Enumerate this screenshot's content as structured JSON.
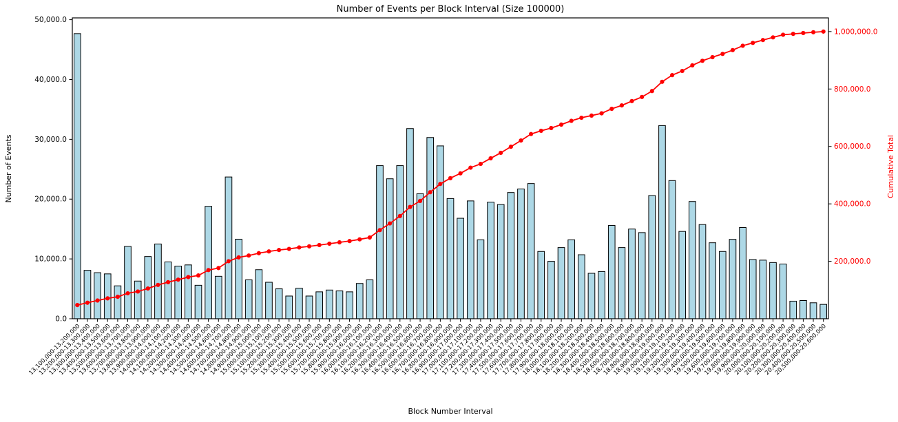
{
  "title": "Number of Events per Block Interval (Size 100000)",
  "chart_data": {
    "type": "bar",
    "title": "Number of Events per Block Interval (Size 100000)",
    "xlabel": "Block Number Interval",
    "ylabel": "Number of Events",
    "ylabel_right": "Cumulative Total",
    "grid": false,
    "legend_position": "none",
    "bar_color": "#ADD8E6",
    "bar_edge_color": "#000000",
    "line_color": "#ff0000",
    "right_axis_text_color": "#ff0000",
    "ylim_left": [
      0,
      50300
    ],
    "ylim_right": [
      0,
      1047600
    ],
    "yticks_left": {
      "values": [
        0,
        10000,
        20000,
        30000,
        40000,
        50000
      ],
      "labels": [
        "0.0",
        "10,000.0",
        "20,000.0",
        "30,000.0",
        "40,000.0",
        "50,000.0"
      ]
    },
    "yticks_right": {
      "values": [
        200000,
        400000,
        600000,
        800000,
        1000000
      ],
      "labels": [
        "200,000.0",
        "400,000.0",
        "600,000.0",
        "800,000.0",
        "1,000,000.0"
      ]
    },
    "categories": [
      "13,100,000-13,200,000",
      "13,200,000-13,300,000",
      "13,300,000-13,400,000",
      "13,400,000-13,500,000",
      "13,500,000-13,600,000",
      "13,600,000-13,700,000",
      "13,700,000-13,800,000",
      "13,800,000-13,900,000",
      "13,900,000-14,000,000",
      "14,000,000-14,100,000",
      "14,100,000-14,200,000",
      "14,200,000-14,300,000",
      "14,300,000-14,400,000",
      "14,400,000-14,500,000",
      "14,500,000-14,600,000",
      "14,600,000-14,700,000",
      "14,700,000-14,800,000",
      "14,800,000-14,900,000",
      "14,900,000-15,000,000",
      "15,000,000-15,100,000",
      "15,100,000-15,200,000",
      "15,200,000-15,300,000",
      "15,300,000-15,400,000",
      "15,400,000-15,500,000",
      "15,500,000-15,600,000",
      "15,600,000-15,700,000",
      "15,700,000-15,800,000",
      "15,800,000-15,900,000",
      "15,900,000-16,000,000",
      "16,000,000-16,100,000",
      "16,100,000-16,200,000",
      "16,200,000-16,300,000",
      "16,300,000-16,400,000",
      "16,400,000-16,500,000",
      "16,500,000-16,600,000",
      "16,600,000-16,700,000",
      "16,700,000-16,800,000",
      "16,800,000-16,900,000",
      "16,900,000-17,000,000",
      "17,000,000-17,100,000",
      "17,100,000-17,200,000",
      "17,200,000-17,300,000",
      "17,300,000-17,400,000",
      "17,400,000-17,500,000",
      "17,500,000-17,600,000",
      "17,600,000-17,700,000",
      "17,700,000-17,800,000",
      "17,800,000-17,900,000",
      "17,900,000-18,000,000",
      "18,000,000-18,100,000",
      "18,100,000-18,200,000",
      "18,200,000-18,300,000",
      "18,300,000-18,400,000",
      "18,400,000-18,500,000",
      "18,500,000-18,600,000",
      "18,600,000-18,700,000",
      "18,700,000-18,800,000",
      "18,800,000-18,900,000",
      "18,900,000-19,000,000",
      "19,000,000-19,100,000",
      "19,100,000-19,200,000",
      "19,200,000-19,300,000",
      "19,300,000-19,400,000",
      "19,400,000-19,500,000",
      "19,500,000-19,600,000",
      "19,600,000-19,700,000",
      "19,700,000-19,800,000",
      "19,800,000-19,900,000",
      "19,900,000-20,000,000",
      "20,000,000-20,100,000",
      "20,100,000-20,200,000",
      "20,200,000-20,300,000",
      "20,300,000-20,400,000",
      "20,400,000-20,500,000",
      "20,500,000-20,600,000"
    ],
    "series": [
      {
        "name": "Number of Events",
        "type": "bar",
        "axis": "left",
        "values": [
          47670,
          8100,
          7700,
          7500,
          5500,
          12100,
          6300,
          10400,
          12500,
          9500,
          8800,
          9000,
          5600,
          18800,
          7100,
          23700,
          13300,
          6500,
          8200,
          6100,
          5000,
          3800,
          5100,
          3800,
          4500,
          4800,
          4650,
          4500,
          5900,
          6500,
          25600,
          23400,
          25600,
          31800,
          20900,
          30300,
          28900,
          20100,
          16800,
          19700,
          13200,
          19500,
          19100,
          21100,
          21700,
          22600,
          11250,
          9600,
          11900,
          13200,
          10700,
          7600,
          7900,
          15600,
          11900,
          15000,
          14400,
          20600,
          32300,
          23100,
          14600,
          19600,
          15750,
          12700,
          11250,
          13270,
          15250,
          9900,
          9800,
          9400,
          9150,
          2940,
          3050,
          2670,
          2400
        ]
      },
      {
        "name": "Cumulative Total",
        "type": "line",
        "axis": "right",
        "values": [
          47670,
          55770,
          63470,
          70970,
          76470,
          88570,
          94870,
          105270,
          117770,
          127270,
          136070,
          145070,
          150670,
          169470,
          176570,
          200270,
          213570,
          220070,
          228270,
          234370,
          239370,
          243170,
          248270,
          252070,
          256570,
          261370,
          266020,
          270520,
          276420,
          282920,
          308520,
          331920,
          357520,
          389320,
          410220,
          440520,
          469420,
          489520,
          506320,
          526020,
          539220,
          558720,
          577820,
          598920,
          620620,
          643220,
          654470,
          664070,
          675970,
          689170,
          699870,
          707470,
          715370,
          730970,
          742870,
          757870,
          772270,
          792870,
          825170,
          848270,
          862870,
          882470,
          898220,
          910920,
          922170,
          935440,
          950690,
          960590,
          970390,
          979790,
          988940,
          991880,
          994930,
          997600,
          1000000
        ]
      }
    ]
  }
}
